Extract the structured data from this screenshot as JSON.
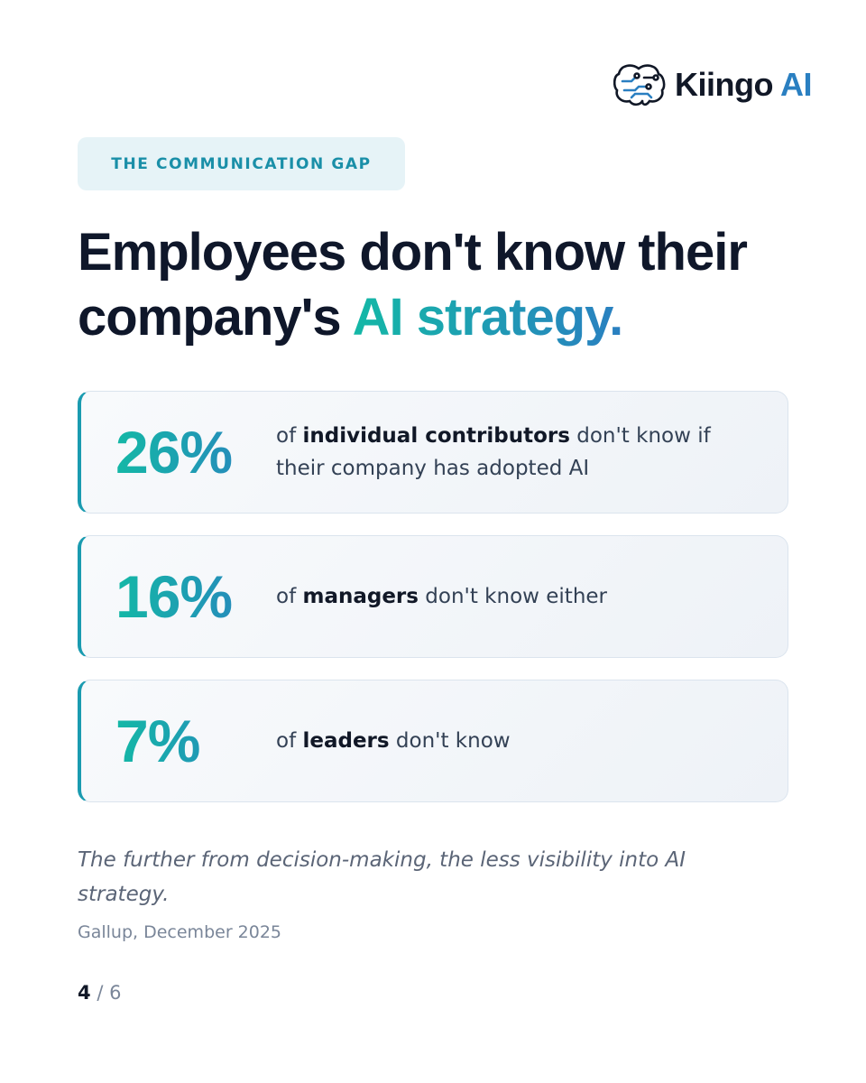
{
  "logo": {
    "name": "Kiingo",
    "accent": "AI"
  },
  "tag": "THE COMMUNICATION GAP",
  "title": {
    "lead": "Employees don't know their company's ",
    "highlight": "AI strategy."
  },
  "stats": [
    {
      "value": "26%",
      "prefix": "of ",
      "emphasis": "individual contributors",
      "suffix": " don't know if their company has adopted AI"
    },
    {
      "value": "16%",
      "prefix": "of ",
      "emphasis": "managers",
      "suffix": " don't know either"
    },
    {
      "value": "7%",
      "prefix": "of ",
      "emphasis": "leaders",
      "suffix": " don't know"
    }
  ],
  "footnote": "The further from decision-making, the less visibility into AI strategy.",
  "source": "Gallup, December 2025",
  "pagination": {
    "current": "4",
    "separator": "/",
    "total": "6"
  }
}
